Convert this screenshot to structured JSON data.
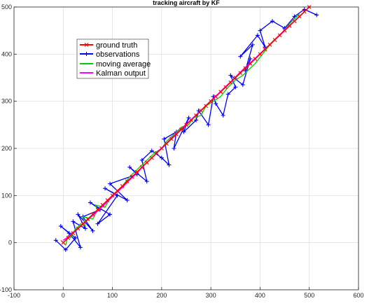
{
  "chart_data": {
    "type": "line",
    "title": "tracking aircraft by KF",
    "xlabel": "",
    "ylabel": "",
    "xlim": [
      -100,
      600
    ],
    "ylim": [
      -100,
      500
    ],
    "x_ticks": [
      -100,
      0,
      100,
      200,
      300,
      400,
      500,
      600
    ],
    "y_ticks": [
      -100,
      0,
      100,
      200,
      300,
      400,
      500
    ],
    "grid": true,
    "legend_position": "upper-left",
    "series": [
      {
        "name": "ground truth",
        "color": "#ff0000",
        "marker": "x",
        "x": [
          0,
          10,
          20,
          30,
          40,
          50,
          60,
          70,
          80,
          90,
          100,
          110,
          120,
          130,
          140,
          150,
          160,
          170,
          180,
          190,
          200,
          210,
          220,
          230,
          240,
          250,
          260,
          270,
          280,
          290,
          300,
          310,
          320,
          330,
          340,
          350,
          360,
          370,
          380,
          390,
          400,
          410,
          420,
          430,
          440,
          450,
          460,
          470,
          480,
          490,
          500
        ],
        "y": [
          0,
          10,
          20,
          30,
          40,
          50,
          60,
          70,
          80,
          90,
          100,
          110,
          120,
          130,
          140,
          150,
          160,
          170,
          180,
          190,
          200,
          210,
          220,
          230,
          240,
          250,
          260,
          270,
          280,
          290,
          300,
          310,
          320,
          330,
          340,
          350,
          360,
          370,
          380,
          390,
          400,
          410,
          420,
          430,
          440,
          450,
          460,
          470,
          480,
          490,
          500
        ]
      },
      {
        "name": "observations",
        "color": "#0000ff",
        "marker": "+",
        "x": [
          -15,
          5,
          25,
          -5,
          12,
          35,
          20,
          45,
          30,
          60,
          40,
          75,
          55,
          95,
          70,
          110,
          85,
          130,
          95,
          150,
          135,
          170,
          160,
          180,
          200,
          215,
          205,
          230,
          225,
          255,
          245,
          270,
          275,
          295,
          305,
          310,
          325,
          335,
          350,
          340,
          365,
          380,
          370,
          385,
          360,
          395,
          410,
          400,
          425,
          450,
          470,
          490,
          515
        ],
        "y": [
          5,
          -15,
          10,
          35,
          20,
          -10,
          45,
          30,
          60,
          25,
          55,
          70,
          85,
          60,
          40,
          100,
          115,
          90,
          125,
          145,
          160,
          130,
          175,
          195,
          180,
          165,
          220,
          235,
          200,
          265,
          235,
          260,
          280,
          250,
          310,
          295,
          270,
          315,
          330,
          355,
          335,
          390,
          365,
          420,
          395,
          440,
          415,
          450,
          470,
          455,
          480,
          495,
          483
        ]
      },
      {
        "name": "moving average",
        "color": "#00cc00",
        "marker": "",
        "x": [
          -5,
          5,
          10,
          15,
          25,
          20,
          35,
          45,
          40,
          60,
          70,
          65,
          85,
          95,
          110,
          120,
          135,
          145,
          160,
          170,
          185,
          200,
          210,
          220,
          240,
          255,
          265,
          280,
          290,
          305,
          320,
          335,
          350,
          365,
          380,
          390,
          405,
          420,
          440,
          460,
          480
        ],
        "y": [
          5,
          -5,
          15,
          10,
          30,
          20,
          40,
          35,
          55,
          50,
          70,
          80,
          75,
          95,
          110,
          120,
          140,
          150,
          165,
          175,
          190,
          200,
          215,
          225,
          245,
          250,
          265,
          270,
          290,
          300,
          310,
          330,
          345,
          355,
          370,
          380,
          400,
          420,
          440,
          465,
          485
        ]
      },
      {
        "name": "Kalman output",
        "color": "#ff00ff",
        "marker": "",
        "x": [
          0,
          10,
          20,
          30,
          45,
          60,
          75,
          90,
          105,
          120,
          135,
          150,
          165,
          180,
          195,
          210,
          225,
          240,
          255,
          270,
          285,
          300,
          315,
          330,
          345,
          360,
          375,
          390,
          405,
          420,
          440,
          460,
          480,
          495
        ],
        "y": [
          5,
          12,
          22,
          30,
          44,
          58,
          72,
          87,
          103,
          117,
          133,
          148,
          165,
          180,
          196,
          211,
          227,
          242,
          256,
          271,
          286,
          301,
          316,
          331,
          346,
          362,
          377,
          391,
          406,
          421,
          441,
          461,
          480,
          495
        ]
      }
    ]
  }
}
